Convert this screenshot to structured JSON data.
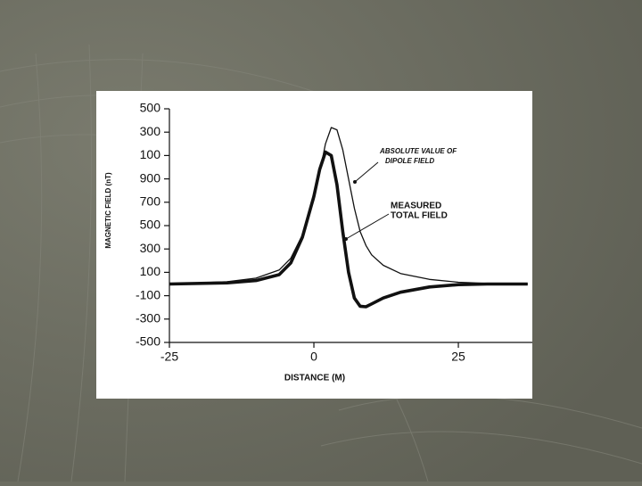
{
  "chart_data": {
    "type": "line",
    "ylabel": "MAGNETIC FIELD (nT)",
    "xlabel": "DISTANCE (M)",
    "x": [
      -25,
      -15,
      -10,
      -6,
      -4,
      -2,
      0,
      1,
      2,
      3,
      4,
      5,
      6,
      7,
      8,
      9,
      10,
      12,
      15,
      20,
      25,
      30,
      37
    ],
    "series": [
      {
        "color": "#111111",
        "values": [
          0,
          20,
          50,
          120,
          220,
          420,
          720,
          950,
          1200,
          1340,
          1320,
          1150,
          900,
          650,
          450,
          330,
          250,
          160,
          90,
          40,
          15,
          5,
          0
        ]
      },
      {
        "color": "#111111",
        "values": [
          0,
          10,
          30,
          80,
          180,
          400,
          750,
          980,
          1130,
          1100,
          850,
          450,
          100,
          -120,
          -190,
          -195,
          -170,
          -120,
          -70,
          -25,
          -5,
          0,
          0
        ]
      }
    ],
    "annotations": [
      [
        "ABSOLUTE VALUE OF",
        "DIPOLE FIELD"
      ],
      [
        "MEASURED",
        "TOTAL FIELD"
      ]
    ],
    "xlim": [
      -25,
      37.8
    ],
    "xticks": [
      -25,
      0,
      25
    ],
    "ylim": [
      -500,
      1500
    ],
    "yticks": [
      {
        "value": 1500,
        "label": "500"
      },
      {
        "value": 1300,
        "label": "300"
      },
      {
        "value": 1100,
        "label": "100"
      },
      900,
      700,
      500,
      300,
      100,
      -100,
      -300,
      -500
    ]
  }
}
